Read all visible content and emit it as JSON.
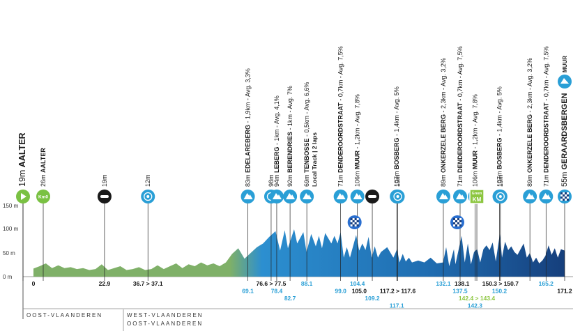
{
  "chart_data": {
    "type": "area",
    "ylabel": "",
    "ylim": [
      0,
      150
    ],
    "xlim": [
      0,
      171.2
    ],
    "y_ticks": [
      "150 m",
      "100 m",
      "50 m",
      "0 m"
    ],
    "y_tick_values": [
      150,
      100,
      50,
      0
    ],
    "colors": {
      "early": "#7fb068",
      "mid": "#2c8fd0",
      "late": "#163f7c",
      "marker": "#2a9fd6",
      "sprint": "#1a1a1a",
      "start": "#7ac143",
      "finish_check": "#2a6fd0"
    },
    "profile": [
      [
        0,
        17
      ],
      [
        2,
        22
      ],
      [
        4,
        28
      ],
      [
        6,
        18
      ],
      [
        8,
        24
      ],
      [
        10,
        18
      ],
      [
        12,
        20
      ],
      [
        14,
        16
      ],
      [
        16,
        18
      ],
      [
        18,
        14
      ],
      [
        20,
        16
      ],
      [
        22,
        26
      ],
      [
        24,
        14
      ],
      [
        26,
        18
      ],
      [
        28,
        22
      ],
      [
        30,
        14
      ],
      [
        32,
        16
      ],
      [
        34,
        20
      ],
      [
        36,
        14
      ],
      [
        38,
        16
      ],
      [
        40,
        24
      ],
      [
        42,
        16
      ],
      [
        44,
        22
      ],
      [
        46,
        28
      ],
      [
        48,
        18
      ],
      [
        50,
        26
      ],
      [
        52,
        22
      ],
      [
        54,
        30
      ],
      [
        56,
        24
      ],
      [
        58,
        28
      ],
      [
        60,
        22
      ],
      [
        62,
        30
      ],
      [
        64,
        48
      ],
      [
        66,
        60
      ],
      [
        68,
        38
      ],
      [
        70,
        50
      ],
      [
        72,
        62
      ],
      [
        74,
        70
      ],
      [
        76,
        84
      ],
      [
        78,
        96
      ],
      [
        79.5,
        55
      ],
      [
        81,
        98
      ],
      [
        82,
        60
      ],
      [
        84,
        100
      ],
      [
        85,
        70
      ],
      [
        87,
        94
      ],
      [
        88,
        52
      ],
      [
        89.5,
        90
      ],
      [
        91,
        64
      ],
      [
        92,
        86
      ],
      [
        93,
        60
      ],
      [
        94,
        92
      ],
      [
        96,
        70
      ],
      [
        97,
        86
      ],
      [
        98,
        70
      ],
      [
        99,
        94
      ],
      [
        100,
        40
      ],
      [
        101,
        62
      ],
      [
        102,
        40
      ],
      [
        104,
        88
      ],
      [
        105,
        55
      ],
      [
        106,
        70
      ],
      [
        107,
        56
      ],
      [
        108,
        84
      ],
      [
        109,
        40
      ],
      [
        110,
        64
      ],
      [
        111,
        40
      ],
      [
        112,
        52
      ],
      [
        114,
        62
      ],
      [
        116,
        40
      ],
      [
        117.2,
        58
      ],
      [
        118,
        30
      ],
      [
        119,
        48
      ],
      [
        120,
        32
      ],
      [
        121,
        40
      ],
      [
        122,
        30
      ],
      [
        124,
        34
      ],
      [
        126,
        30
      ],
      [
        128,
        40
      ],
      [
        130,
        28
      ],
      [
        132,
        30
      ],
      [
        133,
        62
      ],
      [
        134,
        22
      ],
      [
        135.5,
        58
      ],
      [
        136,
        26
      ],
      [
        138,
        86
      ],
      [
        139,
        30
      ],
      [
        140,
        70
      ],
      [
        141,
        26
      ],
      [
        142,
        52
      ],
      [
        143,
        58
      ],
      [
        144,
        30
      ],
      [
        145,
        58
      ],
      [
        146,
        66
      ],
      [
        147,
        56
      ],
      [
        148,
        72
      ],
      [
        149,
        32
      ],
      [
        150.3,
        90
      ],
      [
        151,
        40
      ],
      [
        152,
        74
      ],
      [
        153,
        56
      ],
      [
        154,
        64
      ],
      [
        155,
        52
      ],
      [
        156,
        46
      ],
      [
        158,
        70
      ],
      [
        159,
        40
      ],
      [
        160,
        50
      ],
      [
        161,
        30
      ],
      [
        162,
        40
      ],
      [
        163,
        28
      ],
      [
        164,
        34
      ],
      [
        165,
        44
      ],
      [
        166,
        66
      ],
      [
        167,
        46
      ],
      [
        168,
        60
      ],
      [
        169,
        40
      ],
      [
        170,
        58
      ],
      [
        171.2,
        55
      ]
    ],
    "top_labels": [
      {
        "km": 0,
        "alt": "19m",
        "name": "AALTER",
        "type": "start"
      },
      {
        "km": 0,
        "alt": "26m",
        "name": "AALTER",
        "type": "km0"
      },
      {
        "km": 22.9,
        "alt": "19m",
        "name": "",
        "type": "sprint"
      },
      {
        "km": 36.9,
        "alt": "12m",
        "name": "",
        "type": "feed"
      },
      {
        "km": 69.1,
        "alt": "83m",
        "name": "EDELAREBERG",
        "info": " - 1,9km - Avg. 3,3%",
        "type": "climb"
      },
      {
        "km": 76.6,
        "alt": "98m",
        "name": "",
        "type": "feed"
      },
      {
        "km": 78.4,
        "alt": "94m",
        "name": "LEBERG",
        "info": " - 1km - Avg. 4,1%",
        "type": "climb"
      },
      {
        "km": 82.7,
        "alt": "92m",
        "name": "BERENDRIES",
        "info": " - 1km - Avg. 7%",
        "type": "climb"
      },
      {
        "km": 88.1,
        "alt": "69m",
        "name": "TENBOSSE",
        "info": " - 0,5km - Avg. 6,6%",
        "extra": "Local Track | 2 laps",
        "type": "climb"
      },
      {
        "km": 99.0,
        "alt": "71m",
        "name": "DENDEROORDSTRAAT",
        "info": " - 0,7km - Avg. 7,5%",
        "type": "climb"
      },
      {
        "km": 104.4,
        "alt": "106m",
        "name": "MUUR",
        "info": " - 1,2km - Avg. 7,8%",
        "type": "climb"
      },
      {
        "km": 109.2,
        "alt": "",
        "name": "",
        "type": "sprint"
      },
      {
        "km": 117.1,
        "alt": "107m",
        "name": "BOSBERG",
        "info": " - 1,4km - Avg. 5%",
        "type": "climb"
      },
      {
        "km": 117.4,
        "alt": "19m",
        "name": "",
        "type": "feed"
      },
      {
        "km": 132.1,
        "alt": "89m",
        "name": "ONKERZELE BERG",
        "info": " - 2,3km - Avg. 3,2%",
        "type": "climb"
      },
      {
        "km": 137.5,
        "alt": "71m",
        "name": "DENDEROORDSTRAAT",
        "info": " - 0,7km - Avg. 7,5%",
        "type": "climb"
      },
      {
        "km": 142.3,
        "alt": "106m",
        "name": "MUUR",
        "info": " - 1,2km - Avg. 7,8%",
        "type": "climb"
      },
      {
        "km": 142.9,
        "alt": "",
        "name": "",
        "type": "green"
      },
      {
        "km": 150.2,
        "alt": "107m",
        "name": "BOSBERG",
        "info": " - 1,4km - Avg. 5%",
        "type": "climb"
      },
      {
        "km": 150.5,
        "alt": "19m",
        "name": "",
        "type": "feed"
      },
      {
        "km": 160.0,
        "alt": "89m",
        "name": "ONKERZELE BERG",
        "info": " - 2,3km - Avg. 3,2%",
        "type": "climb"
      },
      {
        "km": 165.2,
        "alt": "71m",
        "name": "DENDEROORDSTRAAT",
        "info": " - 0,7km - Avg. 7,5%",
        "type": "climb"
      },
      {
        "km": 171.2,
        "alt": "55m",
        "name": "GERAARDSBERGEN",
        "info": "",
        "suffix": "MUUR",
        "type": "finish"
      }
    ],
    "mid_icons": [
      {
        "km": 104.4,
        "type": "check"
      },
      {
        "km": 137.5,
        "type": "check"
      }
    ],
    "green_text": "Green KM",
    "km_labels": [
      {
        "km": 0,
        "text": "0",
        "row": 0,
        "color": "black"
      },
      {
        "km": 22.9,
        "text": "22.9",
        "row": 0,
        "color": "black"
      },
      {
        "km": 36.9,
        "text": "36.7 > 37.1",
        "row": 0,
        "color": "black"
      },
      {
        "km": 69.1,
        "text": "69.1",
        "row": 1,
        "color": "blue"
      },
      {
        "km": 76.6,
        "text": "76.6 > 77.5",
        "row": 0,
        "color": "black"
      },
      {
        "km": 78.4,
        "text": "78.4",
        "row": 1,
        "color": "blue"
      },
      {
        "km": 82.7,
        "text": "82.7",
        "row": 2,
        "color": "blue"
      },
      {
        "km": 88.1,
        "text": "88.1",
        "row": 0,
        "color": "blue"
      },
      {
        "km": 99.0,
        "text": "99.0",
        "row": 1,
        "color": "blue"
      },
      {
        "km": 104.4,
        "text": "104.4",
        "row": 0,
        "color": "blue"
      },
      {
        "km": 105.0,
        "text": "105.0",
        "row": 1,
        "color": "black"
      },
      {
        "km": 109.2,
        "text": "109.2",
        "row": 2,
        "color": "blue"
      },
      {
        "km": 117.4,
        "text": "117.2 > 117.6",
        "row": 1,
        "color": "black"
      },
      {
        "km": 117.1,
        "text": "117.1",
        "row": 3,
        "color": "blue"
      },
      {
        "km": 132.1,
        "text": "132.1",
        "row": 0,
        "color": "blue"
      },
      {
        "km": 138.1,
        "text": "138.1",
        "row": 0,
        "color": "black"
      },
      {
        "km": 137.5,
        "text": "137.5",
        "row": 1,
        "color": "blue"
      },
      {
        "km": 142.9,
        "text": "142.4 > 143.4",
        "row": 2,
        "color": "green"
      },
      {
        "km": 142.3,
        "text": "142.3",
        "row": 3,
        "color": "blue"
      },
      {
        "km": 150.5,
        "text": "150.3 > 150.7",
        "row": 0,
        "color": "black"
      },
      {
        "km": 150.2,
        "text": "150.2",
        "row": 1,
        "color": "blue"
      },
      {
        "km": 165.2,
        "text": "165.2",
        "row": 0,
        "color": "blue"
      },
      {
        "km": 171.2,
        "text": "171.2",
        "row": 1,
        "color": "black"
      }
    ],
    "regions": [
      {
        "name": "OOST-VLAANDEREN",
        "from": 0,
        "to": 60,
        "row": 0
      },
      {
        "name": "WEST-VLAANDEREN",
        "from": 60,
        "to": 171.2,
        "row": 0
      },
      {
        "name": "OOST-VLAANDEREN",
        "from": 60,
        "to": 171.2,
        "row": 1
      }
    ]
  }
}
